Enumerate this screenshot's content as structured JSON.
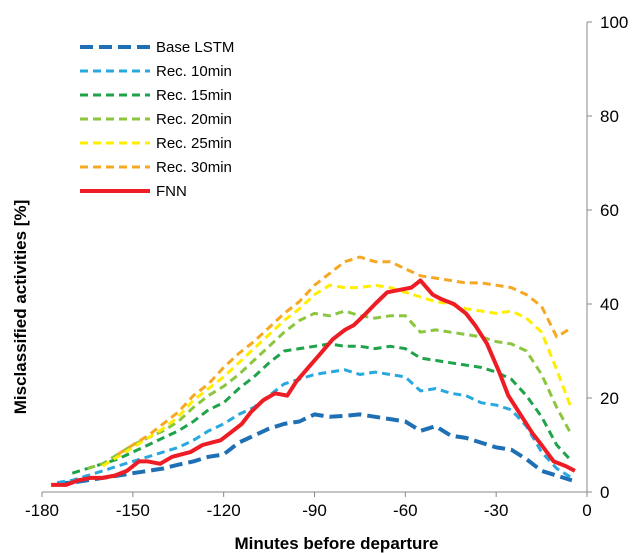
{
  "chart_data": {
    "type": "line",
    "title": "",
    "xlabel": "Minutes before departure",
    "ylabel": "Misclassified activities [%]",
    "xlim": [
      -180,
      0
    ],
    "ylim": [
      0,
      100
    ],
    "x_ticks": [
      -180,
      -150,
      -120,
      -90,
      -60,
      -30,
      0
    ],
    "y_ticks": [
      0,
      20,
      40,
      60,
      80,
      100
    ],
    "y_axis_side": "right",
    "grid": false,
    "legend_position": "top-left",
    "series": [
      {
        "name": "Base LSTM",
        "color": "#1f6fb5",
        "dash": "long-dash",
        "x": [
          -175,
          -170,
          -165,
          -160,
          -155,
          -150,
          -145,
          -140,
          -135,
          -130,
          -125,
          -120,
          -115,
          -110,
          -105,
          -100,
          -95,
          -90,
          -85,
          -80,
          -75,
          -70,
          -65,
          -60,
          -55,
          -50,
          -45,
          -40,
          -35,
          -30,
          -25,
          -20,
          -15,
          -10,
          -5
        ],
        "y": [
          1.8,
          2.0,
          2.5,
          3.0,
          3.5,
          4.0,
          4.5,
          5.0,
          5.8,
          6.5,
          7.5,
          8.0,
          10.5,
          12.0,
          13.5,
          14.5,
          15.0,
          16.5,
          16.0,
          16.2,
          16.5,
          16.0,
          15.5,
          15.0,
          13.0,
          14.0,
          12.0,
          11.5,
          10.5,
          9.5,
          9.0,
          7.0,
          4.5,
          3.5,
          2.5
        ]
      },
      {
        "name": "Rec. 10min",
        "color": "#29a8e0",
        "dash": "dash",
        "x": [
          -175,
          -170,
          -165,
          -160,
          -155,
          -150,
          -145,
          -140,
          -135,
          -130,
          -125,
          -120,
          -115,
          -110,
          -105,
          -100,
          -95,
          -90,
          -85,
          -80,
          -75,
          -70,
          -65,
          -60,
          -55,
          -50,
          -45,
          -40,
          -35,
          -30,
          -25,
          -20,
          -15,
          -10,
          -5
        ],
        "y": [
          2.0,
          2.5,
          3.5,
          4.5,
          5.5,
          6.5,
          7.5,
          8.5,
          9.5,
          11.0,
          13.0,
          14.5,
          16.5,
          18.0,
          20.5,
          23.0,
          24.0,
          25.0,
          25.5,
          26.0,
          25.0,
          25.5,
          25.0,
          24.5,
          21.5,
          22.0,
          21.0,
          20.5,
          19.0,
          18.5,
          17.5,
          14.0,
          8.5,
          5.0,
          3.0
        ]
      },
      {
        "name": "Rec. 15min",
        "color": "#1fa34a",
        "dash": "dash",
        "x": [
          -170,
          -165,
          -160,
          -155,
          -150,
          -145,
          -140,
          -135,
          -130,
          -125,
          -120,
          -115,
          -110,
          -105,
          -100,
          -95,
          -90,
          -85,
          -80,
          -75,
          -70,
          -65,
          -60,
          -55,
          -50,
          -45,
          -40,
          -35,
          -30,
          -25,
          -20,
          -15,
          -10,
          -5
        ],
        "y": [
          4.0,
          5.0,
          6.0,
          7.0,
          8.5,
          10.0,
          11.5,
          13.0,
          15.0,
          17.5,
          19.0,
          22.0,
          24.5,
          27.5,
          30.0,
          30.5,
          31.0,
          31.5,
          31.0,
          31.0,
          30.5,
          31.0,
          30.5,
          28.5,
          28.0,
          27.5,
          27.0,
          26.5,
          25.5,
          24.0,
          20.5,
          16.0,
          10.0,
          6.5
        ]
      },
      {
        "name": "Rec. 20min",
        "color": "#8cc63f",
        "dash": "dash",
        "x": [
          -165,
          -160,
          -155,
          -150,
          -145,
          -140,
          -135,
          -130,
          -125,
          -120,
          -115,
          -110,
          -105,
          -100,
          -95,
          -90,
          -85,
          -80,
          -75,
          -70,
          -65,
          -60,
          -55,
          -50,
          -45,
          -40,
          -35,
          -30,
          -25,
          -20,
          -15,
          -10,
          -5
        ],
        "y": [
          5.0,
          6.0,
          8.0,
          10.0,
          11.5,
          13.0,
          15.0,
          18.0,
          20.5,
          22.5,
          25.0,
          28.0,
          31.0,
          34.0,
          36.5,
          38.0,
          37.5,
          38.5,
          37.5,
          37.0,
          37.5,
          37.5,
          34.0,
          34.5,
          34.0,
          33.5,
          33.0,
          32.0,
          31.5,
          30.0,
          25.0,
          18.0,
          12.0
        ]
      },
      {
        "name": "Rec. 25min",
        "color": "#ffee00",
        "dash": "dash",
        "x": [
          -160,
          -155,
          -150,
          -145,
          -140,
          -135,
          -130,
          -125,
          -120,
          -115,
          -110,
          -105,
          -100,
          -95,
          -90,
          -85,
          -80,
          -75,
          -70,
          -65,
          -60,
          -55,
          -50,
          -45,
          -40,
          -35,
          -30,
          -25,
          -20,
          -15,
          -10,
          -5
        ],
        "y": [
          5.5,
          7.5,
          9.5,
          11.5,
          13.5,
          16.0,
          19.5,
          22.0,
          24.5,
          27.5,
          30.5,
          33.5,
          36.5,
          39.0,
          42.0,
          44.0,
          43.5,
          43.5,
          44.0,
          43.5,
          42.5,
          41.5,
          40.5,
          40.0,
          39.0,
          38.5,
          38.0,
          38.5,
          37.0,
          34.0,
          26.0,
          17.5
        ]
      },
      {
        "name": "Rec. 30min",
        "color": "#f7a823",
        "dash": "dash",
        "x": [
          -155,
          -150,
          -145,
          -140,
          -135,
          -130,
          -125,
          -120,
          -115,
          -110,
          -105,
          -100,
          -95,
          -90,
          -85,
          -80,
          -75,
          -70,
          -65,
          -60,
          -55,
          -50,
          -45,
          -40,
          -35,
          -30,
          -25,
          -20,
          -15,
          -10,
          -5
        ],
        "y": [
          8.0,
          10.0,
          12.0,
          14.5,
          17.0,
          20.5,
          23.0,
          26.5,
          29.5,
          32.0,
          35.0,
          38.0,
          40.5,
          44.0,
          46.5,
          49.0,
          50.0,
          49.0,
          49.0,
          47.5,
          46.0,
          45.5,
          45.0,
          44.5,
          44.5,
          44.0,
          43.5,
          42.0,
          39.5,
          33.0,
          35.0
        ]
      },
      {
        "name": "FNN",
        "color": "#ee1c24",
        "dash": "solid",
        "x": [
          -177,
          -172,
          -168,
          -164,
          -160,
          -156,
          -152,
          -148,
          -145,
          -141,
          -137,
          -134,
          -131,
          -127,
          -124,
          -121,
          -118,
          -114,
          -111,
          -107,
          -103,
          -99,
          -96,
          -92,
          -88,
          -84,
          -80,
          -77,
          -73,
          -70,
          -66,
          -62,
          -58,
          -55,
          -51,
          -48,
          -44,
          -40,
          -37,
          -33,
          -29,
          -26,
          -22,
          -18,
          -15,
          -11,
          -7,
          -4
        ],
        "y": [
          1.5,
          1.5,
          2.5,
          3.0,
          3.0,
          3.5,
          4.5,
          6.5,
          6.5,
          6.0,
          7.5,
          8.0,
          8.5,
          10.0,
          10.5,
          11.0,
          12.5,
          14.5,
          17.0,
          19.5,
          21.0,
          20.5,
          23.5,
          26.5,
          29.5,
          32.5,
          34.5,
          35.5,
          38.0,
          40.0,
          42.5,
          43.0,
          43.5,
          45.0,
          42.0,
          41.0,
          40.0,
          38.0,
          35.5,
          31.5,
          25.5,
          20.5,
          16.5,
          12.5,
          10.0,
          6.5,
          5.5,
          4.5
        ]
      }
    ]
  }
}
